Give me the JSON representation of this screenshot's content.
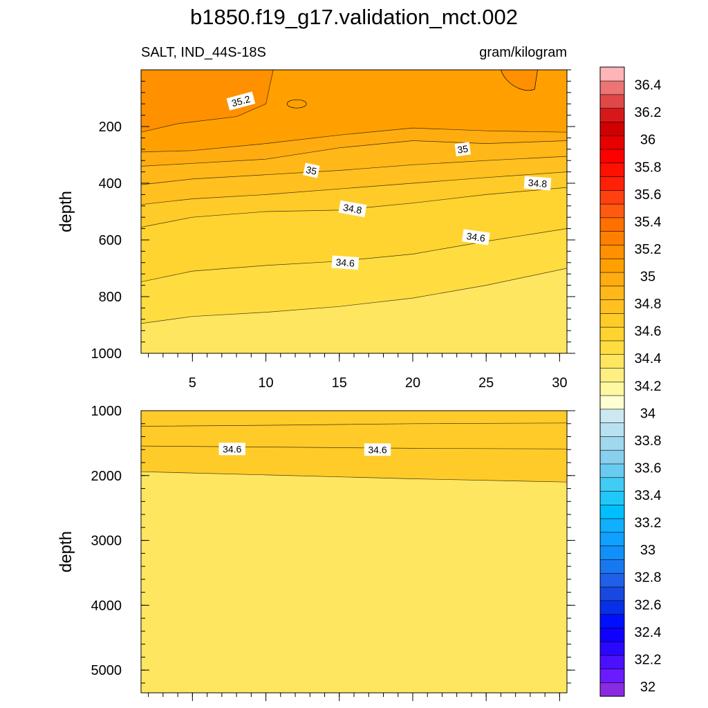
{
  "title": "b1850.f19_g17.validation_mct.002",
  "chart_data": {
    "type": "contour",
    "variable": "SALT, IND_44S-18S",
    "units": "gram/kilogram",
    "colorbar": {
      "levels": [
        32,
        32.1,
        32.2,
        32.3,
        32.4,
        32.5,
        32.6,
        32.7,
        32.8,
        32.9,
        33,
        33.1,
        33.2,
        33.3,
        33.4,
        33.5,
        33.6,
        33.7,
        33.8,
        33.9,
        34,
        34.1,
        34.2,
        34.3,
        34.4,
        34.5,
        34.6,
        34.7,
        34.8,
        34.9,
        35,
        35.1,
        35.2,
        35.3,
        35.4,
        35.5,
        35.6,
        35.7,
        35.8,
        35.9,
        36,
        36.1,
        36.2,
        36.3,
        36.4,
        36.5
      ],
      "labels": [
        "32",
        "32.2",
        "32.4",
        "32.6",
        "32.8",
        "33",
        "33.2",
        "33.4",
        "33.6",
        "33.8",
        "34",
        "34.2",
        "34.4",
        "34.6",
        "34.8",
        "35",
        "35.2",
        "35.4",
        "35.6",
        "35.8",
        "36",
        "36.2",
        "36.4"
      ],
      "label_values": [
        32,
        32.2,
        32.4,
        32.6,
        32.8,
        33,
        33.2,
        33.4,
        33.6,
        33.8,
        34,
        34.2,
        34.4,
        34.6,
        34.8,
        35,
        35.2,
        35.4,
        35.6,
        35.8,
        36,
        36.2,
        36.4
      ],
      "colors": [
        "#8a2be2",
        "#6a1bff",
        "#4a10ff",
        "#2a08ff",
        "#1000ff",
        "#0010ff",
        "#0830e8",
        "#1848e0",
        "#2060e8",
        "#1878f0",
        "#1090f8",
        "#10a0ff",
        "#10b0ff",
        "#00bfff",
        "#20c8f8",
        "#40ccf4",
        "#68ccf0",
        "#88d0ee",
        "#a0d8ee",
        "#b8e2f0",
        "#cce8f2",
        "#ffffd2",
        "#fff8a0",
        "#ffee80",
        "#ffe660",
        "#ffdd40",
        "#ffd430",
        "#ffcb28",
        "#ffc020",
        "#ffb818",
        "#ffac10",
        "#ffa000",
        "#ff9000",
        "#ff8000",
        "#ff7000",
        "#ff5a10",
        "#ff4010",
        "#ff2008",
        "#ff1000",
        "#ff0000",
        "#e80000",
        "#d00000",
        "#d81818",
        "#e04848",
        "#ec7474",
        "#ffb4b8"
      ]
    },
    "panels": [
      {
        "name": "upper",
        "ylabel": "depth",
        "ylim": [
          0,
          1000
        ],
        "yticks": [
          200,
          400,
          600,
          800,
          1000
        ],
        "xlim": [
          1.5,
          30.5
        ],
        "xticks": [
          5,
          10,
          15,
          20,
          25,
          30
        ],
        "xticklabels": [
          "5",
          "10",
          "15",
          "20",
          "25",
          "30"
        ],
        "background_value": 34.45,
        "filled": [
          {
            "level": 34.5,
            "x": [
              1.5,
              5,
              10,
              15,
              20,
              25,
              30.5
            ],
            "y": [
              895,
              870,
              855,
              835,
              805,
              760,
              700
            ]
          },
          {
            "level": 34.6,
            "x": [
              1.5,
              5,
              10,
              15,
              20,
              25,
              30.5
            ],
            "y": [
              748,
              710,
              690,
              675,
              650,
              605,
              560
            ]
          },
          {
            "level": 34.7,
            "x": [
              1.5,
              5,
              10,
              15,
              20,
              25,
              30.5
            ],
            "y": [
              555,
              520,
              500,
              495,
              470,
              440,
              415
            ]
          },
          {
            "level": 34.8,
            "x": [
              1.5,
              5,
              10,
              15,
              20,
              25,
              30.5
            ],
            "y": [
              475,
              455,
              440,
              420,
              400,
              380,
              360
            ]
          },
          {
            "level": 34.9,
            "x": [
              1.5,
              5,
              10,
              15,
              20,
              25,
              30.5
            ],
            "y": [
              405,
              385,
              370,
              355,
              335,
              320,
              305
            ]
          },
          {
            "level": 35.0,
            "x": [
              1.5,
              5,
              10,
              15,
              20,
              25,
              30.5
            ],
            "y": [
              340,
              330,
              315,
              275,
              250,
              260,
              250
            ]
          },
          {
            "level": 35.1,
            "x": [
              1.5,
              5,
              10,
              15,
              20,
              25,
              30.5
            ],
            "y": [
              290,
              285,
              260,
              230,
              205,
              215,
              220
            ]
          },
          {
            "level": 35.2,
            "x": [
              1.5,
              4,
              8,
              10,
              10.5
            ],
            "y": [
              220,
              190,
              165,
              120,
              0
            ]
          }
        ],
        "contour_labels": [
          {
            "text": "35.2",
            "x": 8.3,
            "y": 110,
            "angle": 15
          },
          {
            "text": "35",
            "x": 13.1,
            "y": 355,
            "angle": -12
          },
          {
            "text": "35",
            "x": 23.4,
            "y": 280,
            "angle": 8
          },
          {
            "text": "34.8",
            "x": 15.9,
            "y": 490,
            "angle": -10
          },
          {
            "text": "34.8",
            "x": 28.5,
            "y": 400,
            "angle": -4
          },
          {
            "text": "34.6",
            "x": 15.4,
            "y": 680,
            "angle": -4
          },
          {
            "text": "34.6",
            "x": 24.3,
            "y": 590,
            "angle": -8
          }
        ]
      },
      {
        "name": "lower",
        "ylabel": "depth",
        "ylim": [
          1000,
          5350
        ],
        "yticks": [
          1000,
          2000,
          3000,
          4000,
          5000
        ],
        "xlim": [
          1.5,
          30.5
        ],
        "xticks": [
          5,
          10,
          15,
          20,
          25,
          30
        ],
        "xticklabels": [],
        "background_value": 34.45,
        "filled": [
          {
            "level": 34.5,
            "x": [
              1.5,
              10,
              20,
              30.5
            ],
            "y": [
              1240,
              1225,
              1200,
              1190
            ]
          },
          {
            "level": 34.6,
            "x": [
              1.5,
              10,
              20,
              30.5
            ],
            "y": [
              1545,
              1560,
              1580,
              1590
            ]
          },
          {
            "level": 34.7,
            "x": [
              1.5,
              10,
              20,
              30.5
            ],
            "y": [
              1940,
              1990,
              2050,
              2100
            ]
          }
        ],
        "contour_labels": [
          {
            "text": "34.6",
            "x": 7.7,
            "y": 1590,
            "angle": 0
          },
          {
            "text": "34.6",
            "x": 17.6,
            "y": 1600,
            "angle": 0
          }
        ]
      }
    ]
  }
}
